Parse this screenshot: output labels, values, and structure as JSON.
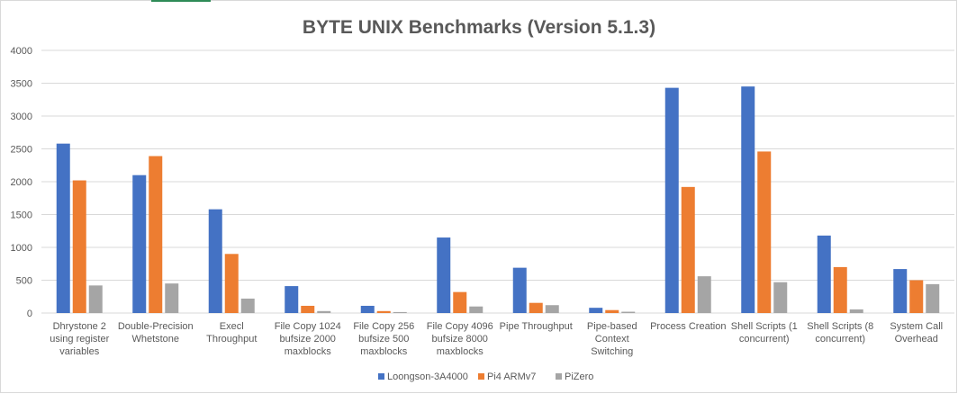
{
  "chart_data": {
    "type": "bar",
    "title": "BYTE UNIX Benchmarks (Version 5.1.3)",
    "xlabel": "",
    "ylabel": "",
    "ylim": [
      0,
      4000
    ],
    "yticks": [
      0,
      500,
      1000,
      1500,
      2000,
      2500,
      3000,
      3500,
      4000
    ],
    "grid": true,
    "legend_position": "bottom",
    "categories": [
      [
        "Dhrystone 2",
        "using register",
        "variables"
      ],
      [
        "Double-Precision",
        "Whetstone"
      ],
      [
        "Execl",
        "Throughput"
      ],
      [
        "File Copy 1024",
        "bufsize 2000",
        "maxblocks"
      ],
      [
        "File Copy 256",
        "bufsize 500",
        "maxblocks"
      ],
      [
        "File Copy 4096",
        "bufsize 8000",
        "maxblocks"
      ],
      [
        "Pipe Throughput"
      ],
      [
        "Pipe-based",
        "Context",
        "Switching"
      ],
      [
        "Process Creation"
      ],
      [
        "Shell Scripts (1",
        "concurrent)"
      ],
      [
        "Shell Scripts (8",
        "concurrent)"
      ],
      [
        "System Call",
        "Overhead"
      ]
    ],
    "series": [
      {
        "name": "Loongson-3A4000",
        "color": "#4472c4",
        "values": [
          2580,
          2100,
          1580,
          410,
          110,
          1150,
          690,
          80,
          3430,
          3450,
          1180,
          670
        ]
      },
      {
        "name": "Pi4 ARMv7",
        "color": "#ed7d31",
        "values": [
          2020,
          2390,
          900,
          110,
          30,
          320,
          155,
          45,
          1920,
          2460,
          700,
          500
        ]
      },
      {
        "name": "PiZero",
        "color": "#a5a5a5",
        "values": [
          420,
          450,
          220,
          30,
          15,
          100,
          120,
          20,
          560,
          470,
          55,
          440
        ]
      }
    ]
  }
}
